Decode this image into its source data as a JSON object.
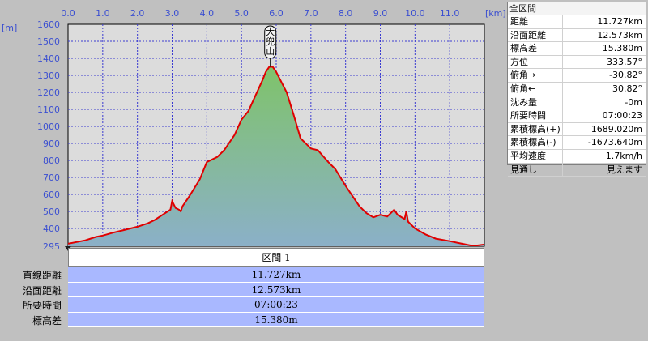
{
  "chart_data": {
    "type": "area",
    "x_unit": "[km]",
    "y_unit": "[m]",
    "xlim": [
      0,
      12.0
    ],
    "ylim": [
      295,
      1600
    ],
    "x_ticks": [
      "0.0",
      "1.0",
      "2.0",
      "3.0",
      "4.0",
      "5.0",
      "6.0",
      "7.0",
      "8.0",
      "9.0",
      "10.0",
      "11.0"
    ],
    "y_ticks": [
      "1600",
      "1500",
      "1400",
      "1300",
      "1200",
      "1100",
      "1000",
      "900",
      "800",
      "700",
      "600",
      "500",
      "400",
      "295"
    ],
    "grid": true,
    "peak_label": "大兜山",
    "peak_x": 5.83,
    "series": [
      {
        "x": [
          0.0,
          0.2,
          0.5,
          0.8,
          1.0,
          1.3,
          1.6,
          1.8,
          2.0,
          2.3,
          2.5,
          2.8,
          2.95,
          3.0,
          3.1,
          3.2,
          3.25,
          3.3,
          3.5,
          3.8,
          4.0,
          4.3,
          4.5,
          4.8,
          5.0,
          5.2,
          5.4,
          5.6,
          5.7,
          5.8,
          5.9,
          6.0,
          6.1,
          6.3,
          6.5,
          6.7,
          7.0,
          7.2,
          7.5,
          7.7,
          8.0,
          8.2,
          8.4,
          8.6,
          8.8,
          9.0,
          9.2,
          9.3,
          9.4,
          9.5,
          9.7,
          9.75,
          9.8,
          10.0,
          10.3,
          10.6,
          11.0,
          11.3,
          11.6,
          11.8,
          12.0
        ],
        "y": [
          310,
          318,
          330,
          350,
          358,
          375,
          390,
          400,
          410,
          430,
          450,
          490,
          510,
          560,
          520,
          510,
          500,
          530,
          590,
          690,
          790,
          820,
          860,
          950,
          1040,
          1090,
          1180,
          1270,
          1320,
          1350,
          1350,
          1320,
          1280,
          1200,
          1070,
          930,
          870,
          860,
          790,
          750,
          650,
          590,
          530,
          490,
          465,
          480,
          470,
          490,
          510,
          480,
          455,
          500,
          440,
          400,
          365,
          340,
          325,
          312,
          300,
          300,
          305
        ]
      }
    ]
  },
  "side_panel": {
    "title": "全区間",
    "rows": [
      {
        "label": "距離",
        "value": "11.727km"
      },
      {
        "label": "沿面距離",
        "value": "12.573km"
      },
      {
        "label": "標高差",
        "value": "15.380m"
      },
      {
        "label": "方位",
        "value": "333.57°"
      },
      {
        "label": "俯角→",
        "value": "-30.82°"
      },
      {
        "label": "俯角←",
        "value": "30.82°"
      },
      {
        "label": "沈み量",
        "value": "-0m"
      },
      {
        "label": "所要時間",
        "value": "07:00:23"
      },
      {
        "label": "累積標高(+)",
        "value": "1689.020m"
      },
      {
        "label": "累積標高(-)",
        "value": "-1673.640m"
      },
      {
        "label": "平均速度",
        "value": "1.7km/h"
      },
      {
        "label": "見通し",
        "value": "見えます"
      }
    ]
  },
  "segment": {
    "header": "区間 1",
    "rows": [
      {
        "label": "直線距離",
        "value": "11.727km"
      },
      {
        "label": "沿面距離",
        "value": "12.573km"
      },
      {
        "label": "所要時間",
        "value": "07:00:23"
      },
      {
        "label": "標高差",
        "value": "15.380m"
      }
    ]
  },
  "colors": {
    "plot_bg": "#dcdcdc",
    "grid": "#3b3bd1",
    "profile_line": "#e00000",
    "fill_top": "#7fc36a",
    "fill_bottom": "#8bb0c8",
    "axis_text": "#3b4fd1",
    "band_bg": "#a9b8ff"
  }
}
